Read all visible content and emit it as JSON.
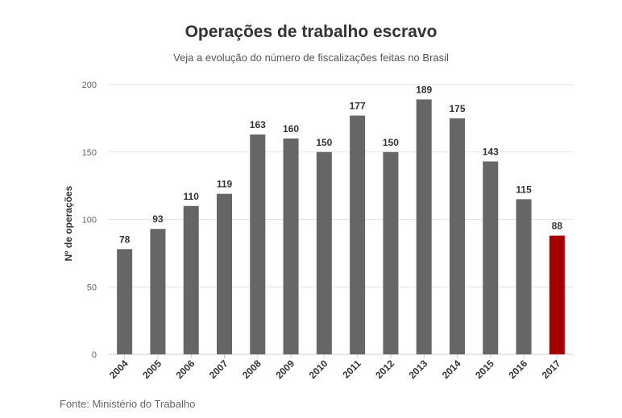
{
  "chart_data": {
    "type": "bar",
    "title": "Operações de trabalho escravo",
    "subtitle": "Veja a evolução do número de fiscalizações feitas no Brasil",
    "ylabel": "Nº de operações",
    "xlabel": "",
    "ylim": [
      0,
      200
    ],
    "yticks": [
      0,
      50,
      100,
      150,
      200
    ],
    "grid": true,
    "categories": [
      "2004",
      "2005",
      "2006",
      "2007",
      "2008",
      "2009",
      "2010",
      "2011",
      "2012",
      "2013",
      "2014",
      "2015",
      "2016",
      "2017"
    ],
    "values": [
      78,
      93,
      110,
      119,
      163,
      160,
      150,
      177,
      150,
      189,
      175,
      143,
      115,
      88
    ],
    "colors": {
      "default": "#666666",
      "highlight": "#a50000",
      "highlight_category": "2017"
    }
  },
  "source": "Fonte: Ministério do Trabalho"
}
